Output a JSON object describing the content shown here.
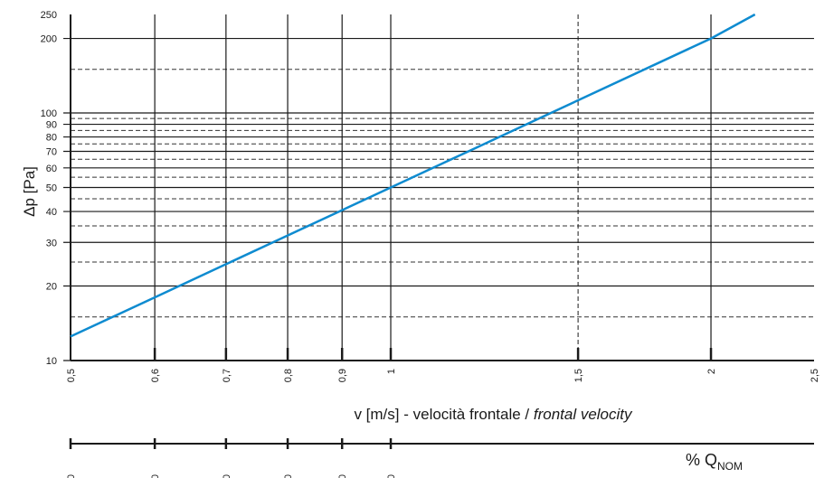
{
  "chart_data": {
    "type": "line",
    "ylabel": "Δp [Pa]",
    "xlabel_main": "v [m/s] - velocità frontale / ",
    "xlabel_italic": "frontal velocity",
    "x_scale": "log",
    "y_scale": "log",
    "xlim": [
      0.5,
      2.5
    ],
    "ylim": [
      10,
      250
    ],
    "x_tick_values": [
      0.5,
      0.6,
      0.7,
      0.8,
      0.9,
      1,
      1.5,
      2,
      2.5
    ],
    "x_tick_labels": [
      "0,5",
      "0,6",
      "0,7",
      "0,8",
      "0,9",
      "1",
      "1,5",
      "2",
      "2,5"
    ],
    "y_tick_values": [
      10,
      20,
      30,
      40,
      50,
      60,
      70,
      80,
      90,
      100,
      200,
      250
    ],
    "y_tick_labels": [
      "10",
      "20",
      "30",
      "40",
      "50",
      "60",
      "70",
      "80",
      "90",
      "100",
      "200",
      "250"
    ],
    "y_dashed_grid": [
      15,
      25,
      35,
      45,
      55,
      65,
      75,
      85,
      95,
      150
    ],
    "x_dashed_grid": [
      1.5
    ],
    "grid": true,
    "series": [
      {
        "color": "#0e8bd0",
        "x": [
          0.5,
          0.6,
          0.7,
          0.8,
          0.9,
          1,
          1.5,
          2,
          2.2
        ],
        "y": [
          12.5,
          18,
          24.5,
          32,
          40.5,
          50,
          112.5,
          200,
          250
        ]
      }
    ],
    "secondary_axis": {
      "label": "% Q",
      "label_sub": "NOM",
      "tick_labels": [
        "30",
        "40",
        "50",
        "60",
        "70",
        "80",
        "90",
        "100"
      ]
    }
  }
}
